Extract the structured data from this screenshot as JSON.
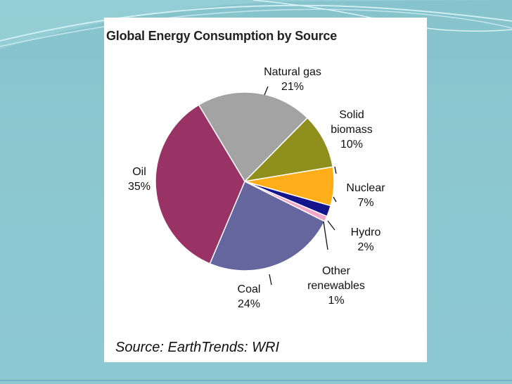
{
  "chart_data": {
    "type": "pie",
    "title": "Global Energy Consumption by Source",
    "source": "Source: EarthTrends: WRI",
    "slices": [
      {
        "label": "Natural gas",
        "value": 21,
        "value_label": "21%",
        "color": "#a3a3a3"
      },
      {
        "label": "Solid biomass",
        "value": 10,
        "value_label": "10%",
        "color": "#8f8f1e"
      },
      {
        "label": "Nuclear",
        "value": 7,
        "value_label": "7%",
        "color": "#ffae1a"
      },
      {
        "label": "Hydro",
        "value": 2,
        "value_label": "2%",
        "color": "#14148c"
      },
      {
        "label": "Other renewables",
        "value": 1,
        "value_label": "1%",
        "color": "#f3a6c8"
      },
      {
        "label": "Coal",
        "value": 24,
        "value_label": "24%",
        "color": "#66669e"
      },
      {
        "label": "Oil",
        "value": 35,
        "value_label": "35%",
        "color": "#993366"
      }
    ]
  }
}
